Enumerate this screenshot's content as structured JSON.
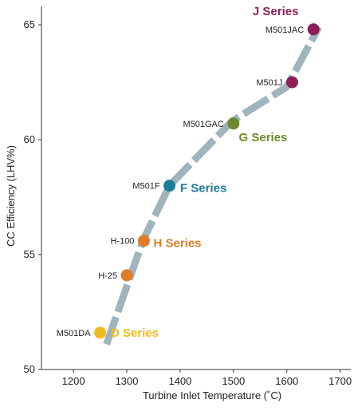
{
  "chart_data": {
    "type": "line",
    "xlabel": "Turbine Inlet Temperature (˚C)",
    "ylabel": "CC Efficiency (LHV%)",
    "xlim": [
      1140,
      1720
    ],
    "ylim": [
      50,
      65.8
    ],
    "x_ticks": [
      "1200",
      "1300",
      "1400",
      "1500",
      "1600",
      "1700"
    ],
    "x_tick_values": [
      1200,
      1300,
      1400,
      1500,
      1600,
      1700
    ],
    "y_ticks": [
      "50",
      "55",
      "60",
      "65"
    ],
    "y_tick_values": [
      50,
      55,
      60,
      65
    ],
    "line_color": "#9fb4bb",
    "line_path": [
      {
        "x": 1262,
        "y": 51.1
      },
      {
        "x": 1330,
        "y": 55.6
      },
      {
        "x": 1380,
        "y": 58.0
      },
      {
        "x": 1497,
        "y": 60.8
      },
      {
        "x": 1600,
        "y": 62.3
      },
      {
        "x": 1660,
        "y": 64.9
      }
    ],
    "points": [
      {
        "label": "M501DA",
        "x": 1250,
        "y": 51.6,
        "color": "#f2bb1d"
      },
      {
        "label": "H-25",
        "x": 1300,
        "y": 54.1,
        "color": "#e07b28"
      },
      {
        "label": "H-100",
        "x": 1332,
        "y": 55.6,
        "color": "#e07b28"
      },
      {
        "label": "M501F",
        "x": 1380,
        "y": 58.0,
        "color": "#1d7a99"
      },
      {
        "label": "M501GAC",
        "x": 1500,
        "y": 60.7,
        "color": "#6f8a2e"
      },
      {
        "label": "M501J",
        "x": 1610,
        "y": 62.5,
        "color": "#8d1f56"
      },
      {
        "label": "M501JAC",
        "x": 1650,
        "y": 64.8,
        "color": "#8d1f56"
      }
    ],
    "series_labels": [
      {
        "text": "D Series",
        "x": 1270,
        "y": 51.6,
        "color": "#f2bb1d"
      },
      {
        "text": "H Series",
        "x": 1350,
        "y": 55.5,
        "color": "#e07b28"
      },
      {
        "text": "F Series",
        "x": 1400,
        "y": 57.9,
        "color": "#1d7a99"
      },
      {
        "text": "G Series",
        "x": 1510,
        "y": 60.1,
        "color": "#6f8a2e"
      },
      {
        "text": "J Series",
        "x": 1622,
        "y": 65.6,
        "color": "#8d1f56"
      }
    ],
    "grid": false
  }
}
